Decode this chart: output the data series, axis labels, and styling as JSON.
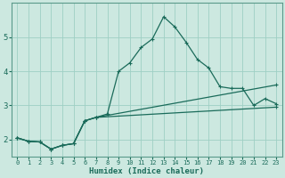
{
  "xlabel": "Humidex (Indice chaleur)",
  "bg_color": "#cce8e0",
  "grid_color": "#9ecfc4",
  "line_color": "#1a6b5a",
  "spine_color": "#5a9a8a",
  "xlim": [
    -0.5,
    23.5
  ],
  "ylim": [
    1.5,
    6.0
  ],
  "yticks": [
    2,
    3,
    4,
    5
  ],
  "xticks": [
    0,
    1,
    2,
    3,
    4,
    5,
    6,
    7,
    8,
    9,
    10,
    11,
    12,
    13,
    14,
    15,
    16,
    17,
    18,
    19,
    20,
    21,
    22,
    23
  ],
  "main_x": [
    0,
    1,
    2,
    3,
    4,
    5,
    6,
    7,
    8,
    9,
    10,
    11,
    12,
    13,
    14,
    15,
    16,
    17,
    18,
    19,
    20,
    21,
    22,
    23
  ],
  "main_y": [
    2.05,
    1.95,
    1.93,
    1.72,
    1.83,
    1.88,
    2.55,
    2.65,
    2.75,
    4.0,
    4.25,
    4.7,
    4.95,
    5.6,
    5.3,
    4.85,
    4.35,
    4.1,
    3.55,
    3.5,
    3.5,
    3.0,
    3.2,
    3.05
  ],
  "line2_x": [
    0,
    1,
    2,
    3,
    4,
    5,
    6,
    7,
    23
  ],
  "line2_y": [
    2.05,
    1.95,
    1.93,
    1.72,
    1.83,
    1.88,
    2.55,
    2.65,
    3.6
  ],
  "line3_x": [
    0,
    1,
    2,
    3,
    4,
    5,
    6,
    7,
    23
  ],
  "line3_y": [
    2.05,
    1.95,
    1.93,
    1.72,
    1.83,
    1.88,
    2.55,
    2.65,
    2.95
  ],
  "marker_size": 3.5,
  "linewidth": 0.9
}
